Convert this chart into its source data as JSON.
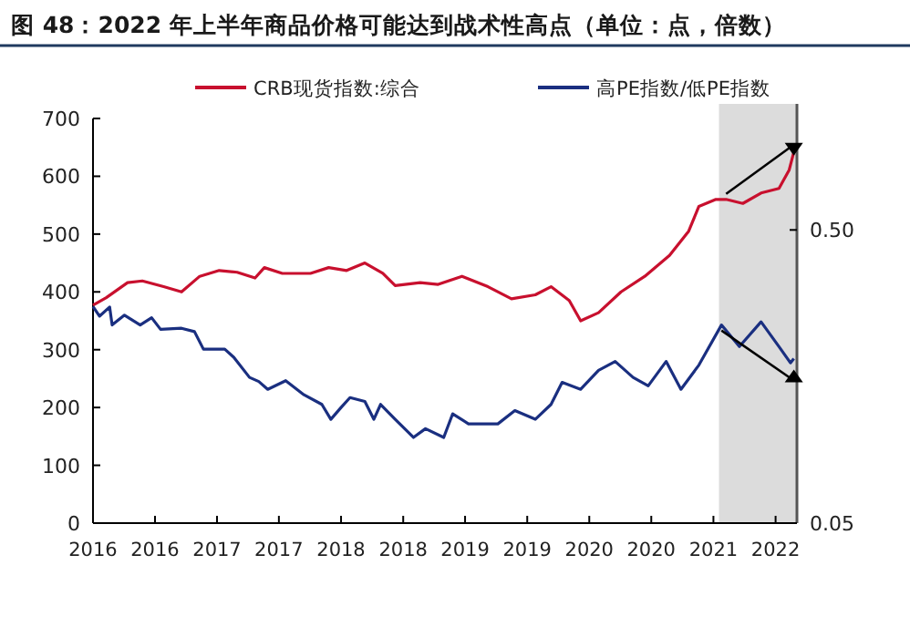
{
  "chart_data": {
    "type": "line",
    "title": "图 48：2022 年上半年商品价格可能达到战术性高点（单位：点，倍数）",
    "xlim": [
      "2016-01-01",
      "2022-03-28"
    ],
    "xticks": [
      {
        "value": "2016-01-01",
        "label": "2016"
      },
      {
        "value": "2016-07-20",
        "label": "2016"
      },
      {
        "value": "2017-02-06",
        "label": "2017"
      },
      {
        "value": "2017-08-25",
        "label": "2017"
      },
      {
        "value": "2018-03-14",
        "label": "2018"
      },
      {
        "value": "2018-10-01",
        "label": "2018"
      },
      {
        "value": "2019-04-19",
        "label": "2019"
      },
      {
        "value": "2019-11-06",
        "label": "2019"
      },
      {
        "value": "2020-05-25",
        "label": "2020"
      },
      {
        "value": "2020-12-12",
        "label": "2020"
      },
      {
        "value": "2021-07-01",
        "label": "2021"
      },
      {
        "value": "2022-01-18",
        "label": "2022"
      }
    ],
    "ylim": [
      0,
      700
    ],
    "yticks": [
      0,
      100,
      200,
      300,
      400,
      500,
      600,
      700
    ],
    "y2lim": [
      0.05,
      1.2
    ],
    "y2ticks": [
      0.05,
      {
        "value": 0.5,
        "label": "0.50"
      }
    ],
    "log": "y2",
    "legend": "top",
    "grid": false,
    "marker": "none",
    "line_style": "solid",
    "bands": [
      {
        "axis": "x",
        "from": "2021-07-19",
        "to": "2022-03-28",
        "color": "#dcdcdc"
      }
    ],
    "series": [
      {
        "name": "CRB现货指数:综合",
        "color": "#c8102e",
        "x": [
          "2016-01-01",
          "2016-02-13",
          "2016-04-22",
          "2016-06-09",
          "2016-08-17",
          "2016-10-14",
          "2016-12-12",
          "2017-02-13",
          "2017-04-12",
          "2017-06-09",
          "2017-07-09",
          "2017-09-05",
          "2017-12-05",
          "2018-02-02",
          "2018-04-01",
          "2018-05-30",
          "2018-07-27",
          "2018-09-05",
          "2018-11-25",
          "2019-01-22",
          "2019-04-09",
          "2019-07-02",
          "2019-09-16",
          "2019-12-02",
          "2020-01-22",
          "2020-03-21",
          "2020-04-27",
          "2020-06-24",
          "2020-09-05",
          "2020-11-21",
          "2021-02-09",
          "2021-04-12",
          "2021-05-15",
          "2021-07-09",
          "2021-08-11",
          "2021-10-04",
          "2021-12-02",
          "2022-01-29",
          "2022-03-03",
          "2022-03-18"
        ],
        "values": [
          377,
          390,
          416,
          419,
          409,
          400,
          427,
          437,
          434,
          424,
          442,
          432,
          432,
          442,
          437,
          450,
          432,
          411,
          416,
          413,
          427,
          409,
          388,
          395,
          409,
          385,
          350,
          364,
          400,
          427,
          463,
          505,
          548,
          560,
          560,
          553,
          571,
          579,
          611,
          642
        ]
      },
      {
        "name": "高PE指数/低PE指数",
        "color": "#1a2f80",
        "axis": "y2",
        "x": [
          "2016-01-01",
          "2016-01-22",
          "2016-02-24",
          "2016-03-03",
          "2016-04-12",
          "2016-06-02",
          "2016-07-09",
          "2016-08-07",
          "2016-10-14",
          "2016-11-25",
          "2016-12-24",
          "2017-03-03",
          "2017-04-01",
          "2017-05-22",
          "2017-06-21",
          "2017-07-20",
          "2017-09-16",
          "2017-11-14",
          "2018-01-11",
          "2018-02-09",
          "2018-03-14",
          "2018-04-12",
          "2018-05-30",
          "2018-06-28",
          "2018-07-20",
          "2018-09-05",
          "2018-11-03",
          "2018-12-12",
          "2019-02-09",
          "2019-03-10",
          "2019-04-30",
          "2019-08-03",
          "2019-09-27",
          "2019-12-02",
          "2020-01-22",
          "2020-02-27",
          "2020-04-27",
          "2020-06-24",
          "2020-08-17",
          "2020-10-14",
          "2020-12-02",
          "2021-01-29",
          "2021-03-18",
          "2021-05-15",
          "2021-07-27",
          "2021-09-23",
          "2021-12-02",
          "2022-01-29",
          "2022-03-07",
          "2022-03-18"
        ],
        "values": [
          0.274,
          0.254,
          0.273,
          0.237,
          0.256,
          0.237,
          0.251,
          0.229,
          0.231,
          0.225,
          0.196,
          0.196,
          0.184,
          0.157,
          0.152,
          0.143,
          0.153,
          0.137,
          0.127,
          0.113,
          0.124,
          0.134,
          0.13,
          0.113,
          0.127,
          0.113,
          0.098,
          0.105,
          0.098,
          0.118,
          0.109,
          0.109,
          0.121,
          0.113,
          0.127,
          0.151,
          0.143,
          0.166,
          0.178,
          0.157,
          0.147,
          0.178,
          0.143,
          0.173,
          0.237,
          0.2,
          0.243,
          0.2,
          0.176,
          0.182
        ]
      }
    ]
  }
}
